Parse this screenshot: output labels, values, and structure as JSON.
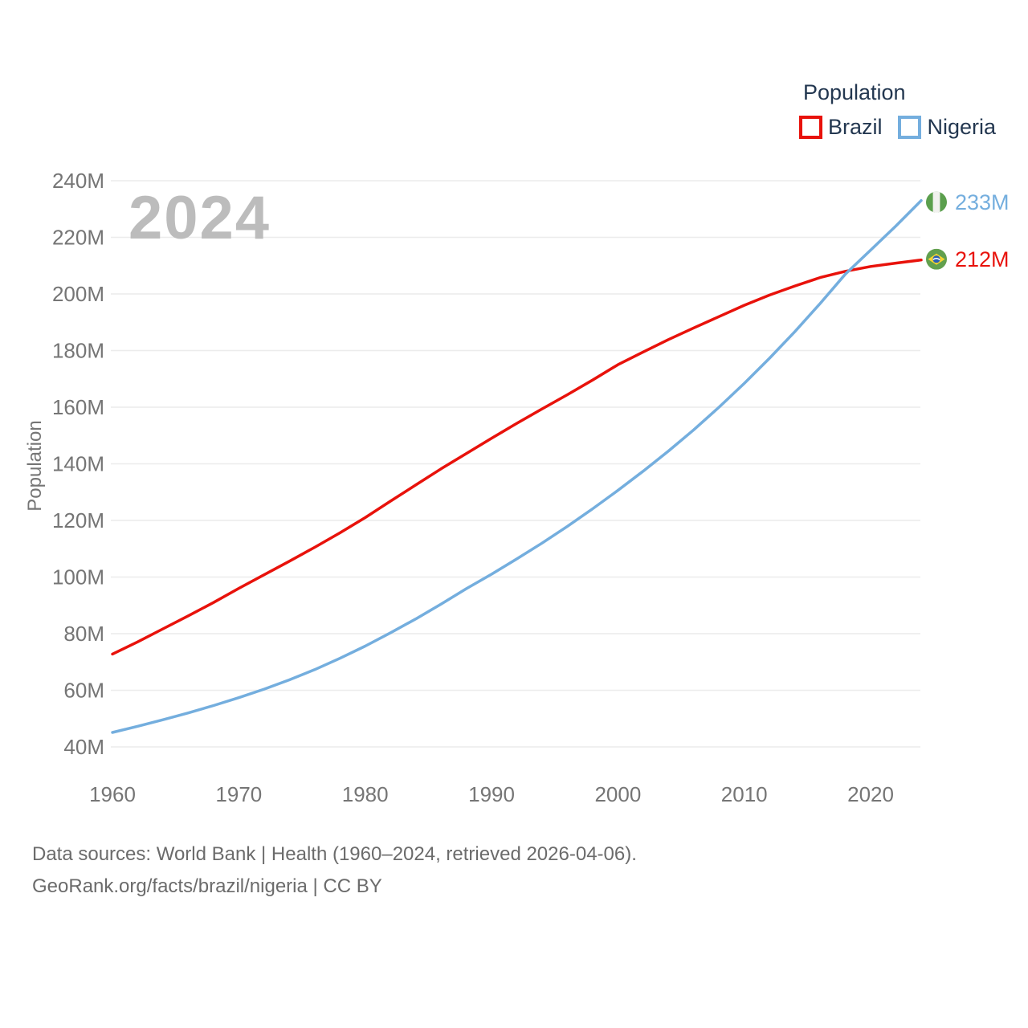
{
  "watermark": "2024",
  "y_axis_title": "Population",
  "legend": {
    "title": "Population",
    "items": [
      {
        "label": "Brazil",
        "color": "#e8120b",
        "flag": "brazil"
      },
      {
        "label": "Nigeria",
        "color": "#74aede",
        "flag": "nigeria"
      }
    ]
  },
  "footer": {
    "line1": "Data sources: World Bank | Health (1960–2024, retrieved 2026-04-06).",
    "line2": "GeoRank.org/facts/brazil/nigeria | CC BY"
  },
  "chart_data": {
    "type": "line",
    "title": "Population",
    "xlabel": "",
    "ylabel": "Population",
    "xlim": [
      1960,
      2024
    ],
    "ylim": [
      40,
      240
    ],
    "y_unit": "M",
    "x_ticks": [
      1960,
      1970,
      1980,
      1990,
      2000,
      2010,
      2020
    ],
    "y_ticks": [
      40,
      60,
      80,
      100,
      120,
      140,
      160,
      180,
      200,
      220,
      240
    ],
    "grid": "horizontal",
    "legend_position": "top-right",
    "x": [
      1960,
      1962,
      1964,
      1966,
      1968,
      1970,
      1972,
      1974,
      1976,
      1978,
      1980,
      1982,
      1984,
      1986,
      1988,
      1990,
      1992,
      1994,
      1996,
      1998,
      2000,
      2002,
      2004,
      2006,
      2008,
      2010,
      2012,
      2014,
      2016,
      2018,
      2020,
      2022,
      2024
    ],
    "series": [
      {
        "name": "Brazil",
        "color": "#e8120b",
        "end_label": "212M",
        "end_value": 212,
        "flag": "brazil",
        "values": [
          72.8,
          77.1,
          81.7,
          86.3,
          91.0,
          96.0,
          100.8,
          105.6,
          110.5,
          115.6,
          121.0,
          126.8,
          132.5,
          138.2,
          143.6,
          149.0,
          154.3,
          159.4,
          164.4,
          169.6,
          175.0,
          179.5,
          183.9,
          188.0,
          192.0,
          196.0,
          199.6,
          202.8,
          205.8,
          208.0,
          209.7,
          210.9,
          212.0
        ]
      },
      {
        "name": "Nigeria",
        "color": "#74aede",
        "end_label": "233M",
        "end_value": 233,
        "flag": "nigeria",
        "values": [
          45.1,
          47.3,
          49.6,
          52.0,
          54.6,
          57.4,
          60.4,
          63.7,
          67.3,
          71.3,
          75.6,
          80.3,
          85.2,
          90.4,
          95.9,
          101.0,
          106.4,
          112.0,
          117.9,
          124.1,
          130.6,
          137.4,
          144.5,
          152.0,
          160.0,
          168.4,
          177.3,
          186.7,
          196.6,
          207.0,
          215.5,
          224.0,
          233.0
        ]
      }
    ],
    "annotations": {
      "tick_color": "#757575",
      "grid_color": "#ececec",
      "end_label_font_size": 27
    }
  }
}
